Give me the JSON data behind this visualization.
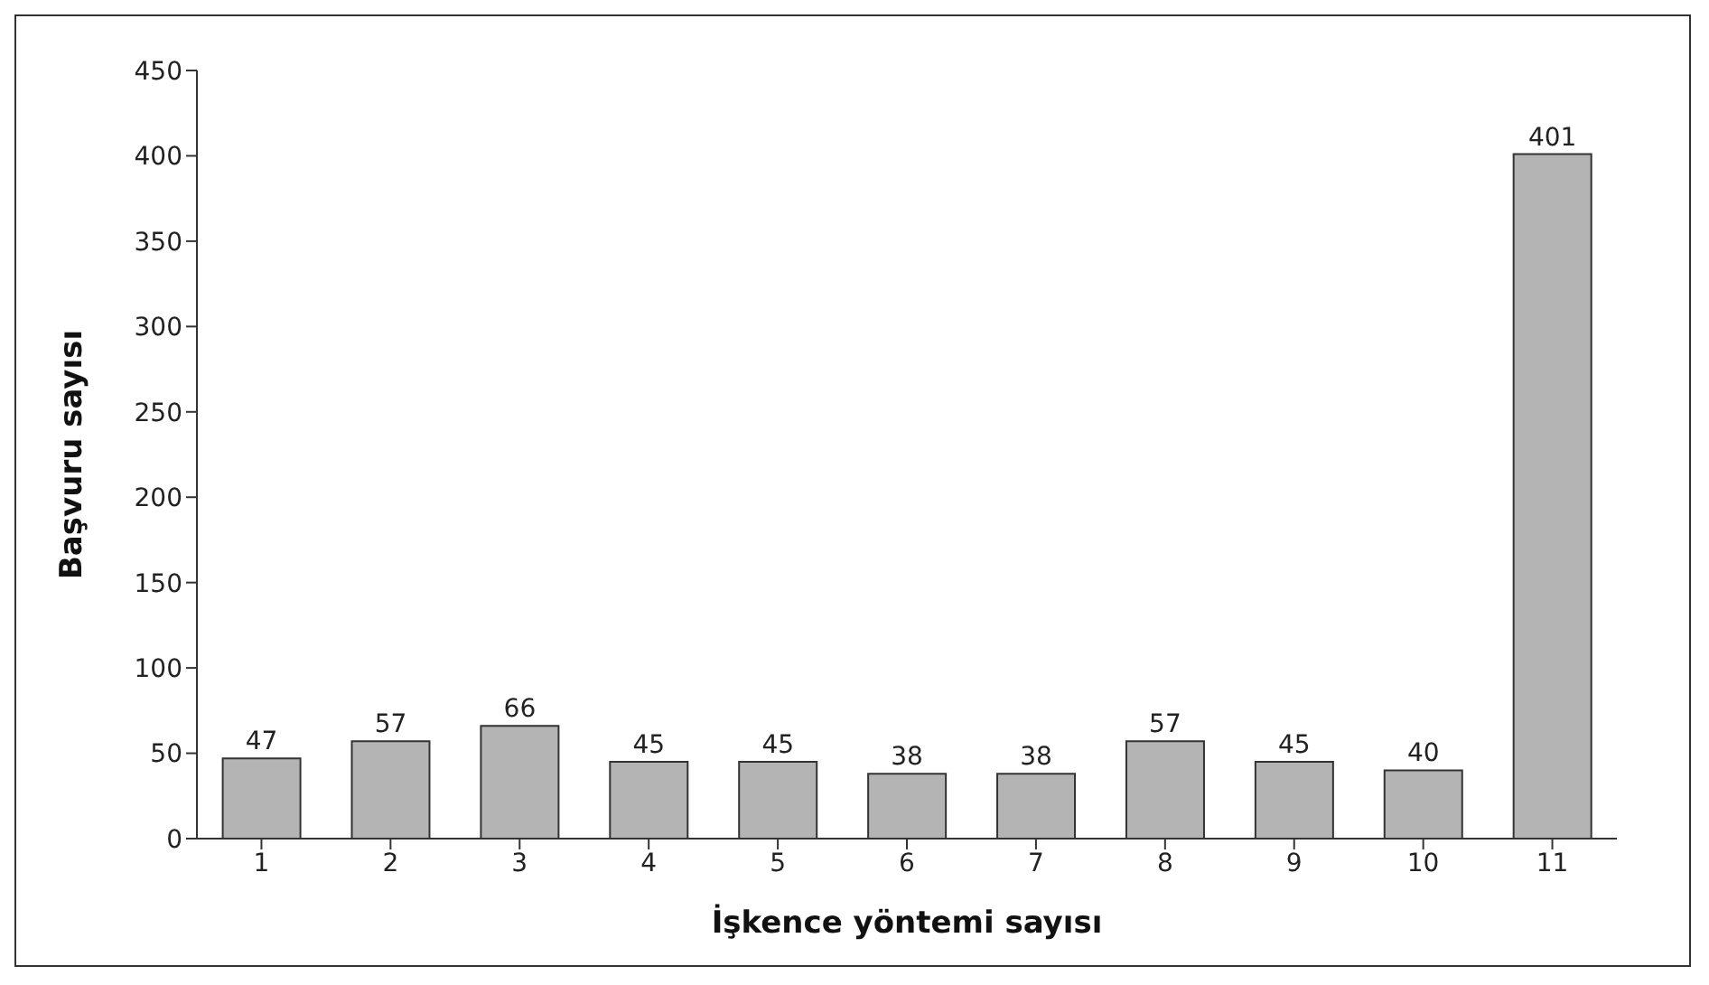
{
  "chart_data": {
    "type": "bar",
    "xlabel": "İşkence yöntemi sayısı",
    "ylabel": "Başvuru sayısı",
    "categories": [
      "1",
      "2",
      "3",
      "4",
      "5",
      "6",
      "7",
      "8",
      "9",
      "10",
      "11"
    ],
    "values": [
      47,
      57,
      66,
      45,
      45,
      38,
      38,
      57,
      45,
      40,
      401
    ],
    "color": "#b4b4b4",
    "ylim": [
      0,
      450
    ],
    "yticks": [
      0,
      50,
      100,
      150,
      200,
      250,
      300,
      350,
      400,
      450
    ],
    "grid": false,
    "data_labels": true
  }
}
